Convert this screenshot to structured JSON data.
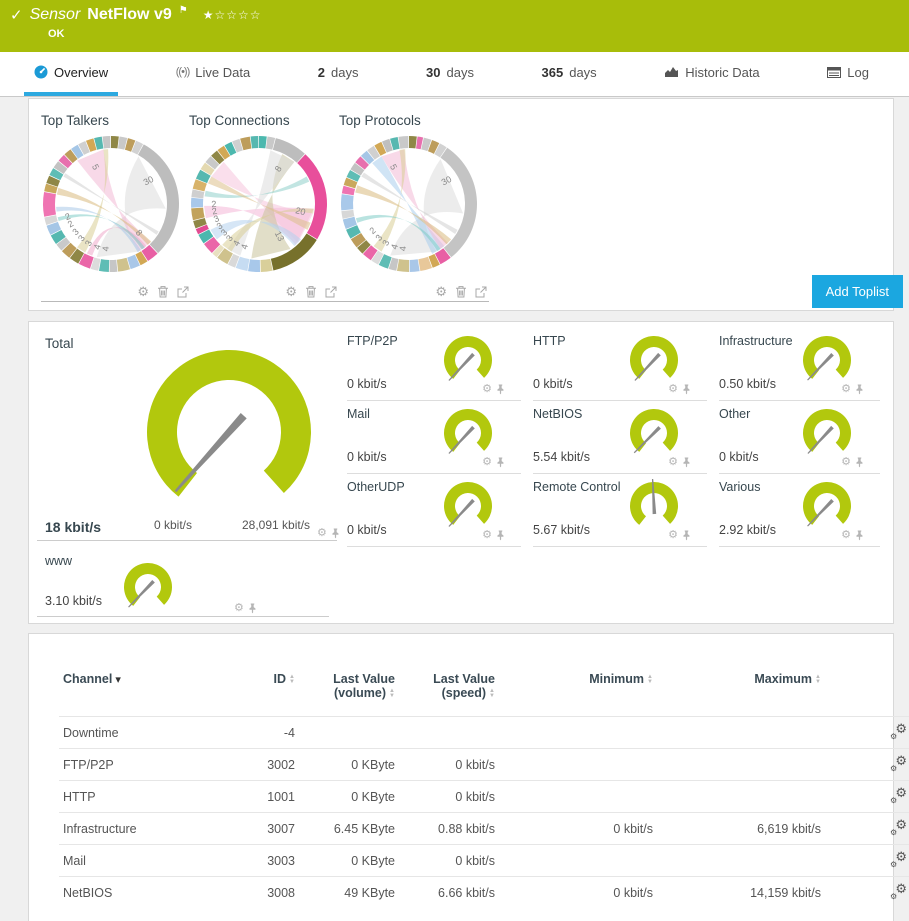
{
  "colors": {
    "header_green": "#a8bd0a",
    "gauge_green": "#b2c80d",
    "needle": "#8a8a8a",
    "accent_blue": "#1ba7e0",
    "tab_underline": "#2da9e0"
  },
  "icons": {
    "check": "✓",
    "flag": "⚑",
    "star_filled": "★",
    "stars_empty": "☆☆☆☆",
    "caret_down": "▾",
    "sort_up": "▲",
    "sort_down": "▼",
    "gear": "⚙",
    "live": "((•))"
  },
  "header": {
    "prefix": "Sensor",
    "title": "NetFlow v9",
    "status": "OK"
  },
  "tabs": {
    "items": [
      {
        "label": "Overview"
      },
      {
        "label": "Live Data"
      },
      {
        "num": "2",
        "label": "days"
      },
      {
        "num": "30",
        "label": "days"
      },
      {
        "num": "365",
        "label": "days"
      },
      {
        "label": "Historic Data"
      },
      {
        "label": "Log"
      }
    ]
  },
  "toplists": {
    "add_button": "Add Toplist",
    "items": [
      {
        "title": "Top Talkers",
        "chord": {
          "segments": [
            [
              2,
              "#8f8746"
            ],
            [
              2,
              "#c9c9c9"
            ],
            [
              2,
              "#bd9d5b"
            ],
            [
              2,
              "#d2d2d2"
            ],
            [
              30,
              "#bdbdbd"
            ],
            [
              3,
              "#e85fa4"
            ],
            [
              2,
              "#d2a855"
            ],
            [
              2.5,
              "#a9c7e8"
            ],
            [
              3,
              "#cfc28d"
            ],
            [
              2,
              "#c6c6c6"
            ],
            [
              2.5,
              "#5fbdb5"
            ],
            [
              2,
              "#dcdcdc"
            ],
            [
              3,
              "#ea66a8"
            ],
            [
              2.5,
              "#8f8746"
            ],
            [
              2.5,
              "#bd9d5b"
            ],
            [
              2,
              "#c9c9c9"
            ],
            [
              2.5,
              "#56b8b0"
            ],
            [
              2.5,
              "#a5c6e6"
            ],
            [
              2,
              "#d7d7d7"
            ],
            [
              6,
              "#ef74b2"
            ],
            [
              2,
              "#c9a85c"
            ],
            [
              2,
              "#8f8746"
            ],
            [
              2,
              "#5fbdb5"
            ],
            [
              2,
              "#c2c2c2"
            ],
            [
              2,
              "#e770ae"
            ],
            [
              2,
              "#bd9d5b"
            ],
            [
              2,
              "#a5c6e6"
            ],
            [
              2,
              "#d0d0d0"
            ],
            [
              2,
              "#d2a855"
            ],
            [
              2,
              "#56b8b0"
            ],
            [
              2,
              "#c6c6c6"
            ]
          ],
          "ribbons": [
            {
              "f": [
                30,
                95
              ],
              "t": [
                150,
                195
              ],
              "c": "#dcdcdc"
            },
            {
              "f": [
                322,
                352
              ],
              "t": [
                134,
                150
              ],
              "c": "#f2b9d6"
            },
            {
              "f": [
                200,
                206
              ],
              "t": [
                140,
                145
              ],
              "c": "#eeaacb"
            },
            {
              "f": [
                208,
                218
              ],
              "t": [
                352,
                357
              ],
              "c": "#d9cd96"
            },
            {
              "f": [
                252,
                256
              ],
              "t": [
                142,
                146
              ],
              "c": "#7fccc6"
            },
            {
              "f": [
                262,
                267
              ],
              "t": [
                147,
                151
              ],
              "c": "#aac9e8"
            },
            {
              "f": [
                280,
                287
              ],
              "t": [
                133,
                138
              ],
              "c": "#d9b97e"
            },
            {
              "f": [
                300,
                304
              ],
              "t": [
                120,
                124
              ],
              "c": "#cfcfcf"
            }
          ],
          "labels": [
            {
              "t": "5",
              "a": 333,
              "r": 40
            },
            {
              "t": "30",
              "a": 62,
              "r": 44
            },
            {
              "t": "8",
              "a": 140,
              "r": 40
            },
            {
              "t": "4",
              "a": 183,
              "r": 45
            },
            {
              "t": "4",
              "a": 194,
              "r": 45
            },
            {
              "t": "3",
              "a": 206,
              "r": 45
            },
            {
              "t": "3",
              "a": 217,
              "r": 45
            },
            {
              "t": "3",
              "a": 228,
              "r": 45
            },
            {
              "t": "2",
              "a": 240,
              "r": 45
            },
            {
              "t": "2",
              "a": 250,
              "r": 45
            }
          ]
        }
      },
      {
        "title": "Top Connections",
        "chord": {
          "segments": [
            [
              2,
              "#4cb8ae"
            ],
            [
              2,
              "#c9c9c9"
            ],
            [
              8,
              "#bdbdbd"
            ],
            [
              22,
              "#e84f9b"
            ],
            [
              13,
              "#77712c"
            ],
            [
              3,
              "#d9cf9a"
            ],
            [
              3,
              "#a8c8ea"
            ],
            [
              3,
              "#c6dcf2"
            ],
            [
              2,
              "#d9d9d9"
            ],
            [
              3,
              "#cfc28d"
            ],
            [
              1.5,
              "#e8e0c0"
            ],
            [
              3,
              "#ea66a8"
            ],
            [
              2.5,
              "#4cb8ae"
            ],
            [
              1.5,
              "#e24b92"
            ],
            [
              2,
              "#8f8746"
            ],
            [
              3,
              "#c2a35c"
            ],
            [
              2.5,
              "#a8c8ea"
            ],
            [
              2,
              "#cfcfcf"
            ],
            [
              2.5,
              "#d8b36a"
            ],
            [
              2.5,
              "#56b8b0"
            ],
            [
              2,
              "#e4d9b0"
            ],
            [
              2,
              "#c9c9c9"
            ],
            [
              2,
              "#8f8746"
            ],
            [
              2,
              "#d2a855"
            ],
            [
              2,
              "#4cb8ae"
            ],
            [
              2,
              "#d0d0d0"
            ],
            [
              2.5,
              "#bd9d5b"
            ],
            [
              2,
              "#56b8b0"
            ]
          ],
          "ribbons": [
            {
              "f": [
                95,
                138
              ],
              "t": [
                255,
                268
              ],
              "c": "#f4b6d7"
            },
            {
              "f": [
                100,
                135
              ],
              "t": [
                300,
                320
              ],
              "c": "#f6c4dd"
            },
            {
              "f": [
                145,
                188
              ],
              "t": [
                25,
                40
              ],
              "c": "#c9c39a"
            },
            {
              "f": [
                12,
                40
              ],
              "t": [
                200,
                215
              ],
              "c": "#dcdcdc"
            },
            {
              "f": [
                230,
                242
              ],
              "t": [
                130,
                140
              ],
              "c": "#b5d2ee"
            },
            {
              "f": [
                210,
                222
              ],
              "t": [
                95,
                100
              ],
              "c": "#d9cd96"
            },
            {
              "f": [
                278,
                284
              ],
              "t": [
                60,
                66
              ],
              "c": "#8fd0ca"
            },
            {
              "f": [
                292,
                300
              ],
              "t": [
                110,
                118
              ],
              "c": "#dcc08a"
            }
          ],
          "labels": [
            {
              "t": "8",
              "a": 33,
              "r": 40
            },
            {
              "t": "20",
              "a": 104,
              "r": 42
            },
            {
              "t": "13",
              "a": 152,
              "r": 38
            },
            {
              "t": "4",
              "a": 195,
              "r": 45
            },
            {
              "t": "4",
              "a": 206,
              "r": 45
            },
            {
              "t": "3",
              "a": 217,
              "r": 45
            },
            {
              "t": "3",
              "a": 227,
              "r": 45
            },
            {
              "t": "3",
              "a": 237,
              "r": 45
            },
            {
              "t": "3",
              "a": 247,
              "r": 45
            },
            {
              "t": "2",
              "a": 257,
              "r": 45
            },
            {
              "t": "2",
              "a": 266,
              "r": 45
            }
          ]
        }
      },
      {
        "title": "Top Protocols",
        "chord": {
          "segments": [
            [
              2,
              "#8f8746"
            ],
            [
              1.5,
              "#e770ae"
            ],
            [
              2,
              "#c9c9c9"
            ],
            [
              2,
              "#bd9d5b"
            ],
            [
              2,
              "#d2d2d2"
            ],
            [
              30,
              "#c4c4c4"
            ],
            [
              3,
              "#e85fa4"
            ],
            [
              2,
              "#d2a855"
            ],
            [
              3,
              "#e8c89a"
            ],
            [
              2.5,
              "#a9c7e8"
            ],
            [
              3,
              "#cfc28d"
            ],
            [
              2,
              "#c6c6c6"
            ],
            [
              2.5,
              "#5fbdb5"
            ],
            [
              2,
              "#dcdcdc"
            ],
            [
              2.5,
              "#ea66a8"
            ],
            [
              2,
              "#8f8746"
            ],
            [
              2.5,
              "#bd9d5b"
            ],
            [
              2.5,
              "#56b8b0"
            ],
            [
              2.5,
              "#a5c6e6"
            ],
            [
              2,
              "#d7d7d7"
            ],
            [
              4,
              "#a9c9ea"
            ],
            [
              2,
              "#ef74b2"
            ],
            [
              2,
              "#c9a85c"
            ],
            [
              2,
              "#5fbdb5"
            ],
            [
              2,
              "#c2c2c2"
            ],
            [
              2,
              "#e770ae"
            ],
            [
              2,
              "#a5c6e6"
            ],
            [
              2,
              "#d0d0d0"
            ],
            [
              2,
              "#d2a855"
            ],
            [
              2,
              "#bfbfbf"
            ],
            [
              2,
              "#56b8b0"
            ],
            [
              2.5,
              "#c9c9c9"
            ]
          ],
          "ribbons": [
            {
              "f": [
                35,
                100
              ],
              "t": [
                150,
                200
              ],
              "c": "#dcdcdc"
            },
            {
              "f": [
                318,
                330
              ],
              "t": [
                140,
                155
              ],
              "c": "#a9cdec"
            },
            {
              "f": [
                330,
                355
              ],
              "t": [
                135,
                145
              ],
              "c": "#f2b9d6"
            },
            {
              "f": [
                210,
                220
              ],
              "t": [
                350,
                356
              ],
              "c": "#d9cd96"
            },
            {
              "f": [
                250,
                255
              ],
              "t": [
                145,
                149
              ],
              "c": "#7fccc6"
            },
            {
              "f": [
                282,
                290
              ],
              "t": [
                130,
                137
              ],
              "c": "#d9b97e"
            },
            {
              "f": [
                300,
                305
              ],
              "t": [
                118,
                123
              ],
              "c": "#cfcfcf"
            }
          ],
          "labels": [
            {
              "t": "5",
              "a": 333,
              "r": 40
            },
            {
              "t": "30",
              "a": 62,
              "r": 44
            },
            {
              "t": "4",
              "a": 184,
              "r": 45
            },
            {
              "t": "4",
              "a": 195,
              "r": 45
            },
            {
              "t": "3",
              "a": 207,
              "r": 45
            },
            {
              "t": "3",
              "a": 218,
              "r": 45
            },
            {
              "t": "2",
              "a": 230,
              "r": 45
            }
          ]
        }
      }
    ]
  },
  "gauges": {
    "total": {
      "label": "Total",
      "value": "18 kbit/s",
      "min": "0 kbit/s",
      "max": "28,091 kbit/s",
      "needle_deg": 222
    },
    "small": [
      {
        "label": "FTP/P2P",
        "value": "0 kbit/s",
        "needle_deg": 223
      },
      {
        "label": "HTTP",
        "value": "0 kbit/s",
        "needle_deg": 223
      },
      {
        "label": "Infrastructure",
        "value": "0.50 kbit/s",
        "needle_deg": 224
      },
      {
        "label": "Mail",
        "value": "0 kbit/s",
        "needle_deg": 223
      },
      {
        "label": "NetBIOS",
        "value": "5.54 kbit/s",
        "needle_deg": 225
      },
      {
        "label": "Other",
        "value": "0 kbit/s",
        "needle_deg": 223
      },
      {
        "label": "OtherUDP",
        "value": "0 kbit/s",
        "needle_deg": 223
      },
      {
        "label": "Remote Control",
        "value": "5.67 kbit/s",
        "needle_deg": 357
      },
      {
        "label": "Various",
        "value": "2.92 kbit/s",
        "needle_deg": 224
      },
      {
        "label": "www",
        "value": "3.10 kbit/s",
        "needle_deg": 224
      }
    ]
  },
  "table": {
    "headers": {
      "channel": "Channel",
      "id": "ID",
      "volume": "Last Value (volume)",
      "speed": "Last Value (speed)",
      "minimum": "Minimum",
      "maximum": "Maximum"
    },
    "rows": [
      {
        "channel": "Downtime",
        "id": "-4",
        "vol": "",
        "speed": "",
        "min": "",
        "max": ""
      },
      {
        "channel": "FTP/P2P",
        "id": "3002",
        "vol": "0 KByte",
        "speed": "0 kbit/s",
        "min": "",
        "max": ""
      },
      {
        "channel": "HTTP",
        "id": "1001",
        "vol": "0 KByte",
        "speed": "0 kbit/s",
        "min": "",
        "max": ""
      },
      {
        "channel": "Infrastructure",
        "id": "3007",
        "vol": "6.45 KByte",
        "speed": "0.88 kbit/s",
        "min": "0 kbit/s",
        "max": "6,619 kbit/s"
      },
      {
        "channel": "Mail",
        "id": "3003",
        "vol": "0 KByte",
        "speed": "0 kbit/s",
        "min": "",
        "max": ""
      },
      {
        "channel": "NetBIOS",
        "id": "3008",
        "vol": "49 KByte",
        "speed": "6.66 kbit/s",
        "min": "0 kbit/s",
        "max": "14,159 kbit/s"
      }
    ]
  }
}
